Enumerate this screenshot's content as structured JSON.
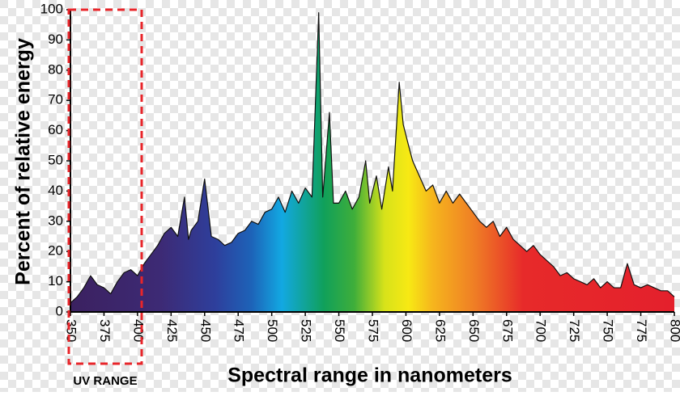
{
  "chart_data": {
    "type": "area",
    "x_label": "Spectral range in nanometers",
    "y_label": "Percent of relative energy",
    "annotation": "UV RANGE",
    "x": [
      350,
      355,
      360,
      365,
      370,
      375,
      380,
      385,
      390,
      395,
      400,
      405,
      410,
      415,
      420,
      425,
      430,
      435,
      438,
      440,
      445,
      450,
      455,
      460,
      465,
      470,
      475,
      480,
      485,
      490,
      495,
      500,
      505,
      510,
      515,
      520,
      525,
      530,
      535,
      538,
      543,
      546,
      550,
      555,
      560,
      565,
      570,
      573,
      578,
      582,
      587,
      590,
      595,
      598,
      602,
      605,
      610,
      615,
      620,
      625,
      630,
      635,
      640,
      645,
      650,
      655,
      660,
      665,
      670,
      675,
      680,
      685,
      690,
      695,
      700,
      705,
      710,
      715,
      720,
      725,
      730,
      735,
      740,
      745,
      750,
      755,
      760,
      765,
      770,
      775,
      780,
      785,
      790,
      795,
      800
    ],
    "values": [
      3,
      5,
      8,
      12,
      9,
      8,
      6,
      10,
      13,
      14,
      12,
      16,
      19,
      22,
      26,
      28,
      25,
      38,
      24,
      27,
      30,
      44,
      25,
      24,
      22,
      23,
      26,
      27,
      30,
      29,
      33,
      34,
      38,
      33,
      40,
      36,
      41,
      38,
      99,
      38,
      66,
      36,
      36,
      40,
      34,
      38,
      50,
      36,
      45,
      34,
      48,
      40,
      76,
      62,
      55,
      50,
      45,
      40,
      42,
      36,
      40,
      36,
      39,
      36,
      33,
      30,
      28,
      30,
      25,
      28,
      24,
      22,
      20,
      22,
      19,
      17,
      15,
      12,
      13,
      11,
      10,
      9,
      11,
      8,
      10,
      8,
      8,
      16,
      9,
      8,
      9,
      8,
      7,
      7,
      5
    ],
    "xlim": [
      350,
      800
    ],
    "ylim": [
      0,
      100
    ],
    "xticks": [
      350,
      375,
      400,
      425,
      450,
      475,
      500,
      525,
      550,
      575,
      600,
      625,
      650,
      675,
      700,
      725,
      750,
      775,
      800
    ],
    "yticks": [
      0,
      10,
      20,
      30,
      40,
      50,
      60,
      70,
      80,
      90,
      100
    ]
  }
}
